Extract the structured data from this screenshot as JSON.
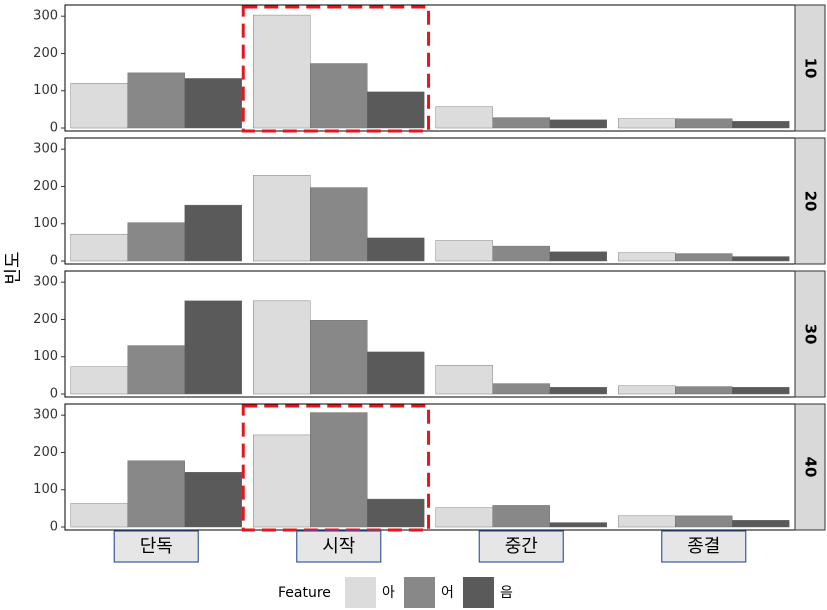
{
  "chart_data": {
    "type": "bar",
    "ylabel": "빈도",
    "legend_title": "Feature",
    "categories": [
      "단독",
      "시작",
      "중간",
      "종결"
    ],
    "series": [
      {
        "name": "아",
        "color": "#dcdcdc"
      },
      {
        "name": "어",
        "color": "#888888"
      },
      {
        "name": "음",
        "color": "#5a5a5a"
      }
    ],
    "ylim": [
      -8,
      330
    ],
    "yticks": [
      0,
      100,
      200,
      300
    ],
    "facets": [
      {
        "label": "10",
        "highlight": "시작",
        "values": [
          [
            120,
            303,
            57,
            25
          ],
          [
            148,
            173,
            28,
            25
          ],
          [
            133,
            97,
            22,
            18
          ]
        ]
      },
      {
        "label": "20",
        "values": [
          [
            72,
            230,
            55,
            22
          ],
          [
            103,
            197,
            40,
            20
          ],
          [
            150,
            62,
            25,
            12
          ]
        ]
      },
      {
        "label": "30",
        "values": [
          [
            73,
            250,
            77,
            22
          ],
          [
            130,
            198,
            28,
            20
          ],
          [
            250,
            113,
            18,
            18
          ]
        ]
      },
      {
        "label": "40",
        "highlight": "시작",
        "values": [
          [
            63,
            247,
            52,
            30
          ],
          [
            178,
            307,
            58,
            30
          ],
          [
            147,
            75,
            12,
            18
          ]
        ]
      }
    ]
  }
}
